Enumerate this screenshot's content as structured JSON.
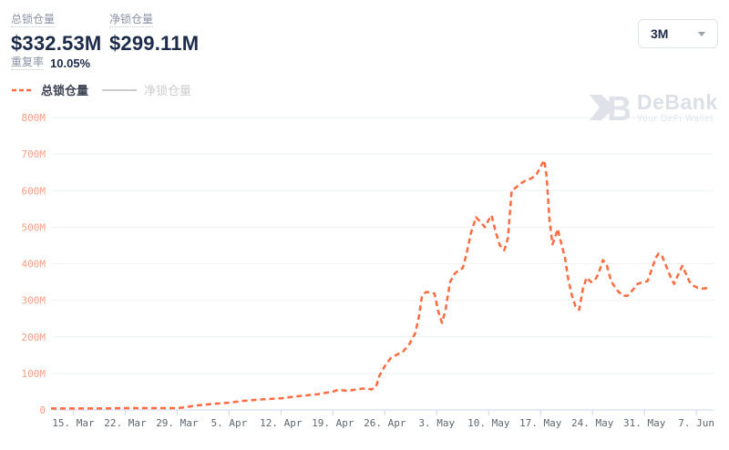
{
  "header": {
    "stats": [
      {
        "label": "总锁仓量",
        "value": "$332.53M"
      },
      {
        "label": "净锁仓量",
        "value": "$299.11M"
      }
    ],
    "repeat_label": "重复率",
    "repeat_value": "10.05%"
  },
  "controls": {
    "range_value": "3M"
  },
  "legend": {
    "items": [
      {
        "label": "总锁仓量",
        "color": "#ff6b40",
        "dash_style": "dashed",
        "active": true
      },
      {
        "label": "净锁仓量",
        "color": "#cccccc",
        "dash_style": "solid",
        "active": false
      }
    ]
  },
  "watermark": {
    "name": "DeBank",
    "tagline": "Your DeFi Wallet"
  },
  "colors": {
    "series_orange": "#ff6b40",
    "y_label": "#f7a084",
    "x_label": "#5f6670",
    "grid": "#eef0f3",
    "axis": "#ccd6eb",
    "dark_navy": "#1c2b4a"
  },
  "chart_data": {
    "type": "line",
    "title": "",
    "unit": "USD millions (M)",
    "grid": true,
    "legend_position": "top-left",
    "y_axis": {
      "min": 0,
      "max": 800,
      "step": 100,
      "tick_labels": [
        "0",
        "100M",
        "200M",
        "300M",
        "400M",
        "500M",
        "600M",
        "700M",
        "800M"
      ]
    },
    "x_axis": {
      "description": "days; day 0 = first plotted point (~12 Mar), weekly ticks",
      "tick_days": [
        3,
        10,
        17,
        24,
        31,
        38,
        45,
        52,
        59,
        66,
        73,
        80,
        87
      ],
      "tick_labels": [
        "15. Mar",
        "22. Mar",
        "29. Mar",
        "5. Apr",
        "12. Apr",
        "19. Apr",
        "26. Apr",
        "3. May",
        "10. May",
        "17. May",
        "24. May",
        "31. May",
        "7. Jun"
      ]
    },
    "series": [
      {
        "name": "总锁仓量",
        "color": "#ff6b40",
        "dash_style": "dashed",
        "visible": true,
        "points": [
          [
            0,
            4
          ],
          [
            3,
            4
          ],
          [
            7,
            4
          ],
          [
            10,
            5
          ],
          [
            14,
            5
          ],
          [
            17,
            5
          ],
          [
            18,
            7
          ],
          [
            19.5,
            12
          ],
          [
            21.5,
            16
          ],
          [
            24,
            20
          ],
          [
            26,
            25
          ],
          [
            28.5,
            29
          ],
          [
            31,
            32
          ],
          [
            33.5,
            38
          ],
          [
            36,
            43
          ],
          [
            38,
            50
          ],
          [
            38.7,
            55
          ],
          [
            40,
            52
          ],
          [
            41.5,
            57
          ],
          [
            42.5,
            59
          ],
          [
            43.2,
            56
          ],
          [
            43.8,
            62
          ],
          [
            44.3,
            95
          ],
          [
            45,
            120
          ],
          [
            45.8,
            142
          ],
          [
            46.7,
            152
          ],
          [
            47.4,
            158
          ],
          [
            48.3,
            180
          ],
          [
            49.1,
            210
          ],
          [
            49.6,
            255
          ],
          [
            50,
            310
          ],
          [
            50.5,
            322
          ],
          [
            51.2,
            322
          ],
          [
            51.7,
            318
          ],
          [
            52.2,
            270
          ],
          [
            52.7,
            238
          ],
          [
            53.2,
            275
          ],
          [
            53.8,
            350
          ],
          [
            54.4,
            372
          ],
          [
            55,
            383
          ],
          [
            55.5,
            388
          ],
          [
            56,
            425
          ],
          [
            56.6,
            483
          ],
          [
            57.3,
            527
          ],
          [
            58,
            512
          ],
          [
            58.5,
            500
          ],
          [
            59,
            520
          ],
          [
            59.4,
            532
          ],
          [
            59.9,
            490
          ],
          [
            60.5,
            450
          ],
          [
            61.1,
            437
          ],
          [
            61.6,
            470
          ],
          [
            62.1,
            600
          ],
          [
            62.6,
            607
          ],
          [
            63.2,
            618
          ],
          [
            64,
            628
          ],
          [
            64.7,
            633
          ],
          [
            65.4,
            642
          ],
          [
            65.8,
            658
          ],
          [
            66.2,
            673
          ],
          [
            66.5,
            683
          ],
          [
            66.8,
            640
          ],
          [
            67.2,
            520
          ],
          [
            67.6,
            453
          ],
          [
            68,
            475
          ],
          [
            68.3,
            495
          ],
          [
            68.8,
            455
          ],
          [
            69.3,
            415
          ],
          [
            69.7,
            360
          ],
          [
            70.2,
            315
          ],
          [
            70.7,
            283
          ],
          [
            71.2,
            274
          ],
          [
            71.7,
            330
          ],
          [
            72.2,
            362
          ],
          [
            72.8,
            350
          ],
          [
            73.3,
            355
          ],
          [
            73.8,
            372
          ],
          [
            74.4,
            410
          ],
          [
            74.9,
            398
          ],
          [
            75.5,
            352
          ],
          [
            76.3,
            328
          ],
          [
            77,
            313
          ],
          [
            77.7,
            312
          ],
          [
            78.5,
            330
          ],
          [
            79.1,
            345
          ],
          [
            79.8,
            350
          ],
          [
            80.4,
            352
          ],
          [
            81,
            385
          ],
          [
            81.5,
            415
          ],
          [
            81.9,
            428
          ],
          [
            82.4,
            420
          ],
          [
            83,
            390
          ],
          [
            83.6,
            360
          ],
          [
            84,
            345
          ],
          [
            84.6,
            372
          ],
          [
            85.1,
            394
          ],
          [
            85.6,
            372
          ],
          [
            86.1,
            350
          ],
          [
            86.6,
            340
          ],
          [
            87.2,
            334
          ],
          [
            87.8,
            332
          ],
          [
            88.5,
            333
          ]
        ]
      },
      {
        "name": "净锁仓量",
        "color": "#cccccc",
        "dash_style": "solid",
        "visible": false,
        "points": []
      }
    ]
  }
}
